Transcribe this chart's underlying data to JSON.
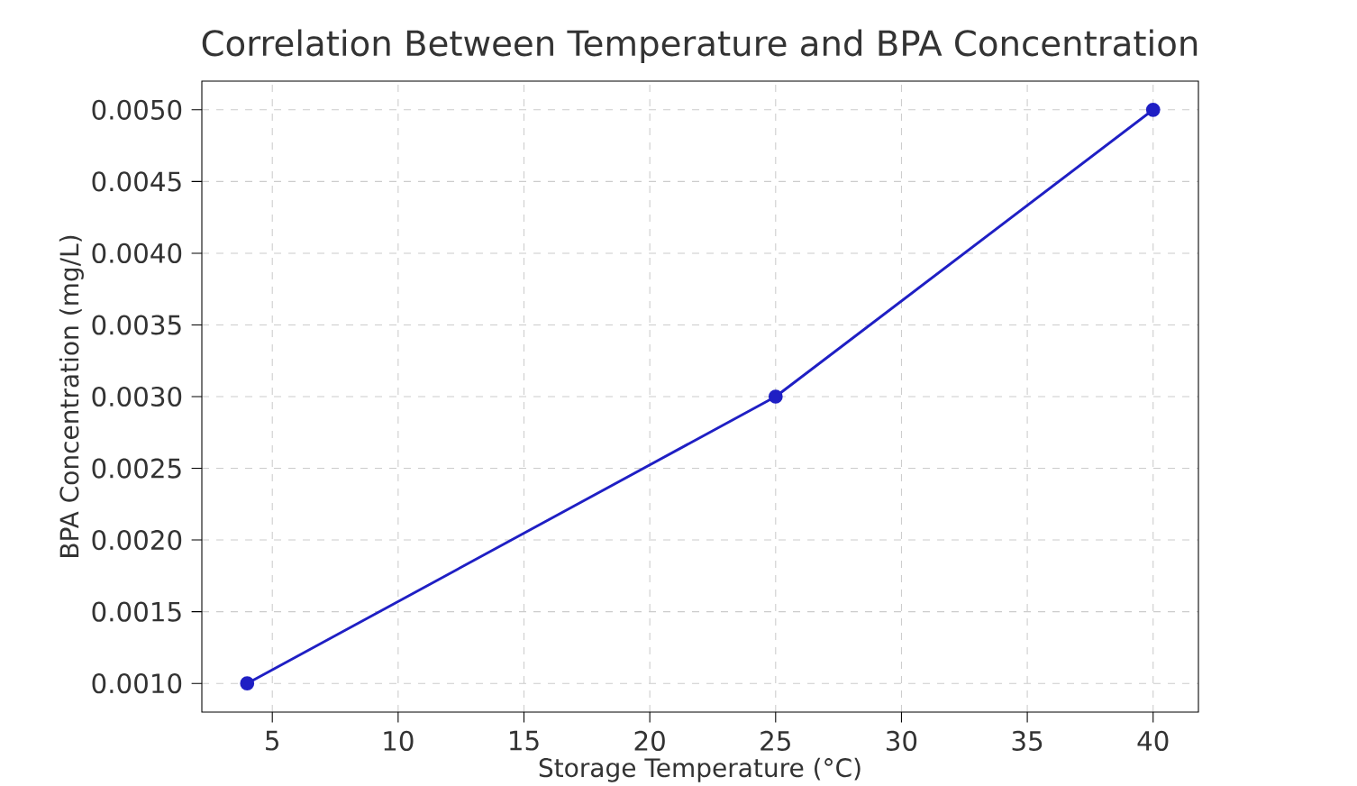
{
  "chart_data": {
    "type": "line",
    "title": "Correlation Between Temperature and BPA Concentration",
    "xlabel": "Storage Temperature (°C)",
    "ylabel": "BPA Concentration (mg/L)",
    "x": [
      4,
      25,
      40
    ],
    "values": [
      0.001,
      0.003,
      0.005
    ],
    "color": "#1f1fc4",
    "marker": "circle",
    "line_style": "solid",
    "grid": true,
    "xlim": [
      2.2,
      41.8
    ],
    "ylim": [
      0.0008,
      0.0052
    ],
    "xticks": [
      5,
      10,
      15,
      20,
      25,
      30,
      35,
      40
    ],
    "yticks": [
      {
        "value": 0.001,
        "label": "0.0010"
      },
      {
        "value": 0.0015,
        "label": "0.0015"
      },
      {
        "value": 0.002,
        "label": "0.0020"
      },
      {
        "value": 0.0025,
        "label": "0.0025"
      },
      {
        "value": 0.003,
        "label": "0.0030"
      },
      {
        "value": 0.0035,
        "label": "0.0035"
      },
      {
        "value": 0.004,
        "label": "0.0040"
      },
      {
        "value": 0.0045,
        "label": "0.0045"
      },
      {
        "value": 0.005,
        "label": "0.0050"
      }
    ]
  }
}
